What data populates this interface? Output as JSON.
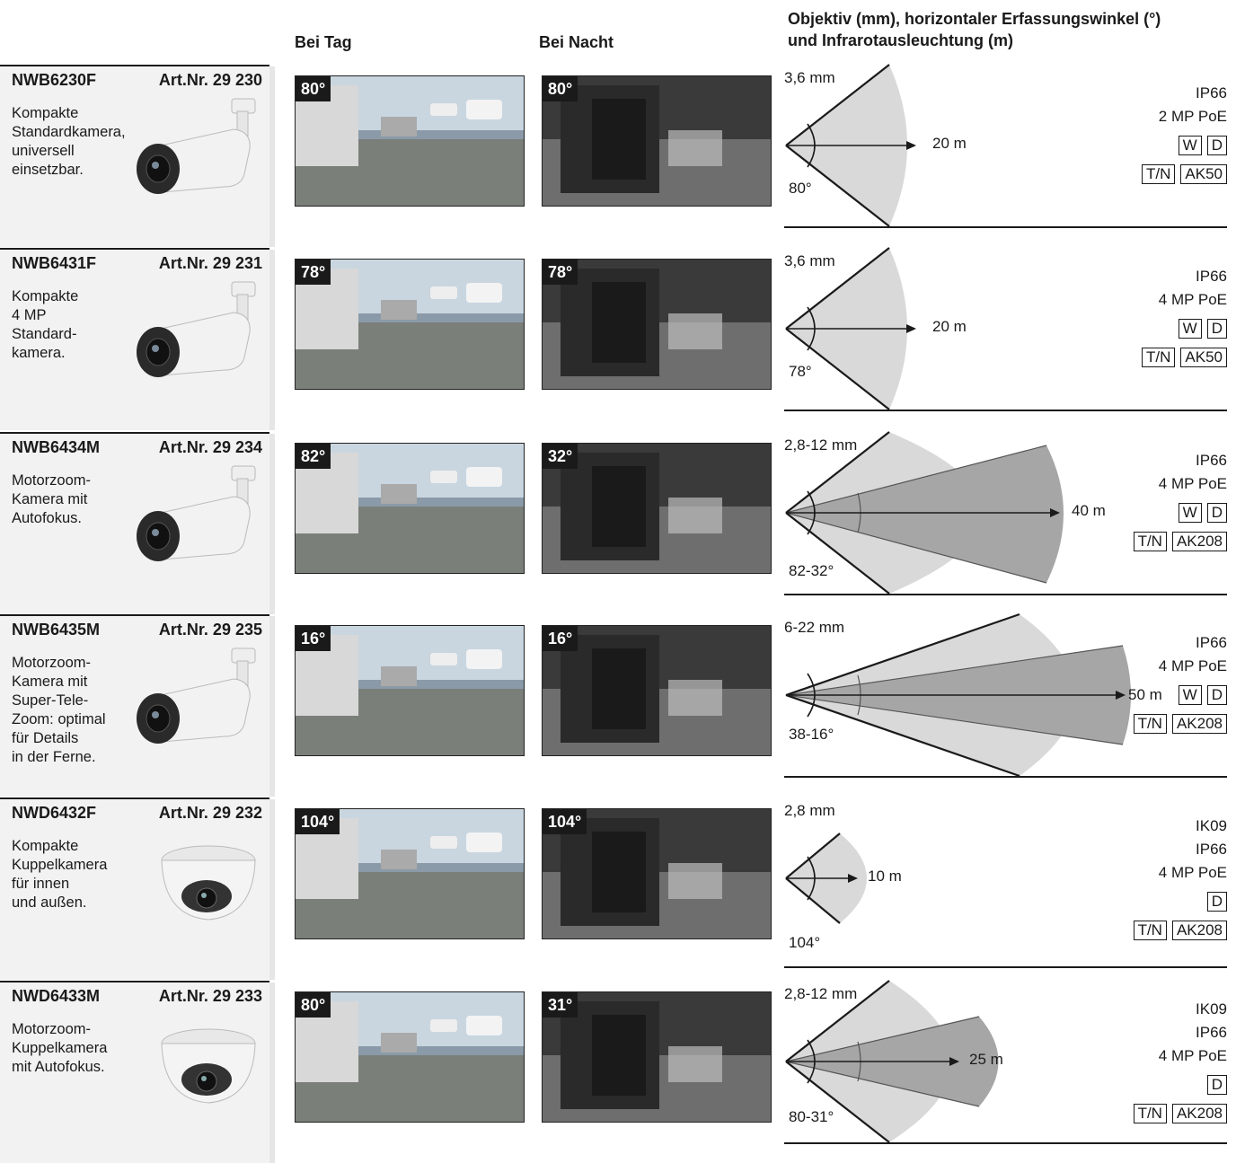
{
  "header": {
    "day": "Bei Tag",
    "night": "Bei Nacht",
    "lens_line1": "Objektiv (mm), horizontaler Erfassungswinkel (°)",
    "lens_line2": "und Infrarotausleuchtung (m)"
  },
  "colors": {
    "fan_light": "#d9d9d9",
    "fan_dark": "#a6a6a6",
    "ink": "#1a1a1a",
    "sidebar": "#f2f2f2"
  },
  "rows": [
    {
      "model": "NWB6230F",
      "artnr": "Art.Nr. 29 230",
      "desc": "Kompakte\nStandardkamera,\nuniversell\neinsetzbar.",
      "camera_icon": "bullet-camera-icon",
      "day_angle": "80°",
      "night_angle": "80°",
      "lens": "3,6 mm",
      "angle": "80°",
      "distance": "20 m",
      "specs": [
        "IP66",
        "2 MP PoE"
      ],
      "boxes1": [
        "W",
        "D"
      ],
      "boxes2": [
        "T/N",
        "AK50"
      ]
    },
    {
      "model": "NWB6431F",
      "artnr": "Art.Nr. 29 231",
      "desc": "Kompakte\n4 MP\nStandard-\nkamera.",
      "camera_icon": "bullet-camera-icon",
      "day_angle": "78°",
      "night_angle": "78°",
      "lens": "3,6 mm",
      "angle": "78°",
      "distance": "20 m",
      "specs": [
        "IP66",
        "4 MP PoE"
      ],
      "boxes1": [
        "W",
        "D"
      ],
      "boxes2": [
        "T/N",
        "AK50"
      ]
    },
    {
      "model": "NWB6434M",
      "artnr": "Art.Nr. 29 234",
      "desc": "Motorzoom-\nKamera mit\nAutofokus.",
      "camera_icon": "bullet-camera-icon",
      "day_angle": "82°",
      "night_angle": "32°",
      "lens": "2,8-12 mm",
      "angle": "82-32°",
      "distance": "40 m",
      "specs": [
        "IP66",
        "4 MP PoE"
      ],
      "boxes1": [
        "W",
        "D"
      ],
      "boxes2": [
        "T/N",
        "AK208"
      ]
    },
    {
      "model": "NWB6435M",
      "artnr": "Art.Nr. 29 235",
      "desc": "Motorzoom-\nKamera mit\nSuper-Tele-\nZoom: optimal\nfür Details\nin der Ferne.",
      "camera_icon": "bullet-camera-icon",
      "day_angle": "16°",
      "night_angle": "16°",
      "lens": "6-22 mm",
      "angle": "38-16°",
      "distance": "50 m",
      "specs": [
        "IP66",
        "4 MP PoE"
      ],
      "boxes1": [
        "W",
        "D"
      ],
      "boxes2": [
        "T/N",
        "AK208"
      ]
    },
    {
      "model": "NWD6432F",
      "artnr": "Art.Nr. 29 232",
      "desc": "Kompakte\nKuppelkamera\nfür innen\nund außen.",
      "camera_icon": "dome-camera-icon",
      "day_angle": "104°",
      "night_angle": "104°",
      "lens": "2,8 mm",
      "angle": "104°",
      "distance": "10 m",
      "specs": [
        "IK09",
        "IP66",
        "4 MP PoE"
      ],
      "boxes1": [
        "D"
      ],
      "boxes2": [
        "T/N",
        "AK208"
      ]
    },
    {
      "model": "NWD6433M",
      "artnr": "Art.Nr. 29 233",
      "desc": "Motorzoom-\nKuppelkamera\nmit Autofokus.",
      "camera_icon": "dome-camera-icon",
      "day_angle": "80°",
      "night_angle": "31°",
      "lens": "2,8-12 mm",
      "angle": "80-31°",
      "distance": "25 m",
      "specs": [
        "IK09",
        "IP66",
        "4 MP PoE"
      ],
      "boxes1": [
        "D"
      ],
      "boxes2": [
        "T/N",
        "AK208"
      ]
    }
  ]
}
